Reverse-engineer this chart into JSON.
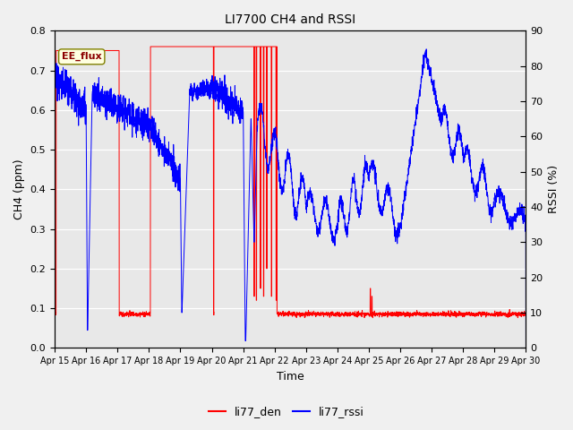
{
  "title": "LI7700 CH4 and RSSI",
  "xlabel": "Time",
  "ylabel_left": "CH4 (ppm)",
  "ylabel_right": "RSSI (%)",
  "annotation": "EE_flux",
  "legend": [
    "li77_den",
    "li77_rssi"
  ],
  "colors": [
    "red",
    "blue"
  ],
  "xlim": [
    0,
    15
  ],
  "ylim_left": [
    0.0,
    0.8
  ],
  "ylim_right": [
    0,
    90
  ],
  "xtick_labels": [
    "Apr 15",
    "Apr 16",
    "Apr 17",
    "Apr 18",
    "Apr 19",
    "Apr 20",
    "Apr 21",
    "Apr 22",
    "Apr 23",
    "Apr 24",
    "Apr 25",
    "Apr 26",
    "Apr 27",
    "Apr 28",
    "Apr 29",
    "Apr 30"
  ],
  "background_color": "#e8e8e8",
  "fig_color": "#f0f0f0"
}
